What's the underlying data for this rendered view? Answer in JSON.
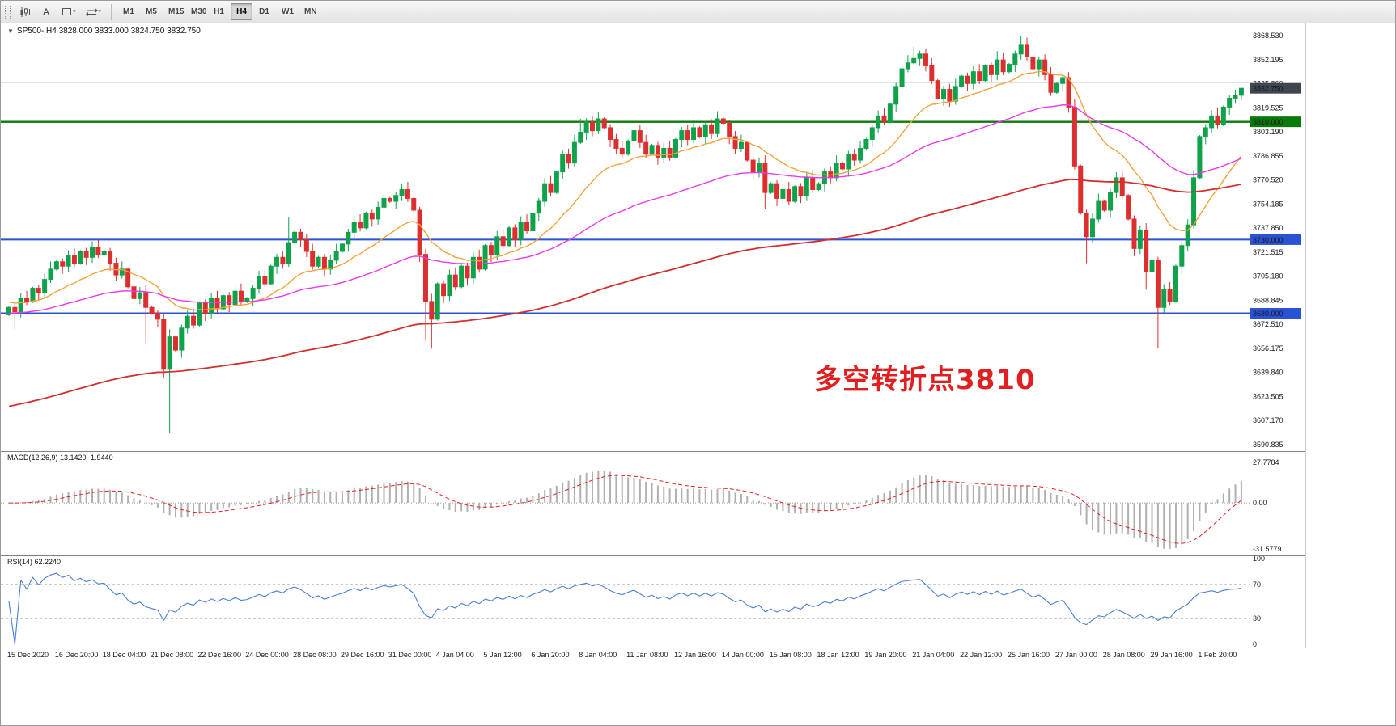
{
  "toolbar": {
    "icon_a": "A",
    "caret": "▾",
    "timeframes": [
      {
        "label": "M1",
        "active": false
      },
      {
        "label": "M5",
        "active": false
      },
      {
        "label": "M15",
        "active": false
      },
      {
        "label": "M30",
        "active": false
      },
      {
        "label": "H1",
        "active": false
      },
      {
        "label": "H4",
        "active": true
      },
      {
        "label": "D1",
        "active": false
      },
      {
        "label": "W1",
        "active": false
      },
      {
        "label": "MN",
        "active": false
      }
    ]
  },
  "chart_data": {
    "type": "candlestick",
    "symbol": "SP500-",
    "timeframe": "H4",
    "shift_marker": "▼",
    "title": "SP500-,H4 3828.000 3833.000 3824.750 3832.750",
    "last_ohlc": {
      "open": 3828.0,
      "high": 3833.0,
      "low": 3824.75,
      "close": 3832.75
    },
    "annotation": {
      "text": "多空转折点3810",
      "color": "#e02020"
    },
    "colors": {
      "up": "#0fa24b",
      "down": "#dd2f2f",
      "background": "#ffffff"
    },
    "price_axis": {
      "top": 3868.53,
      "bottom": 3590.835,
      "labels": [
        "3868.530",
        "3852.195",
        "3835.860",
        "3819.525",
        "3803.190",
        "3786.855",
        "3770.520",
        "3754.185",
        "3737.850",
        "3721.515",
        "3705.180",
        "3688.845",
        "3672.510",
        "3656.175",
        "3639.840",
        "3623.505",
        "3607.170",
        "3590.835"
      ]
    },
    "current_price": {
      "value": 3832.75,
      "label": "3832.750",
      "badge_bg": "#3f4650"
    },
    "horizontal_lines": [
      {
        "price": 3836.85,
        "color": "#7a8fa6",
        "width": 1
      },
      {
        "price": 3810.0,
        "color": "#0a7a0a",
        "width": 2.4,
        "badge": "3810.000"
      },
      {
        "price": 3730.0,
        "color": "#2a52d4",
        "width": 2,
        "badge": "3730.000"
      },
      {
        "price": 3680.0,
        "color": "#2a52d4",
        "width": 2,
        "badge": "3680.000"
      }
    ],
    "moving_averages": [
      {
        "name": "fast",
        "period": 18,
        "seed": 3688,
        "color": "#f2a33c",
        "width": 1.4
      },
      {
        "name": "mid",
        "period": 55,
        "seed": 3680,
        "color": "#e93ae9",
        "width": 1.4
      },
      {
        "name": "slow",
        "period": 160,
        "seed": 3616,
        "color": "#d32f2f",
        "width": 1.8
      }
    ],
    "candles": {
      "open_first": 3679,
      "closes": [
        3684,
        3681,
        3690,
        3688,
        3697,
        3694,
        3703,
        3710,
        3715,
        3712,
        3719,
        3714,
        3722,
        3718,
        3725,
        3720,
        3722,
        3714,
        3706,
        3710,
        3698,
        3690,
        3694,
        3684,
        3680,
        3676,
        3642,
        3664,
        3655,
        3670,
        3678,
        3672,
        3687,
        3680,
        3690,
        3683,
        3692,
        3686,
        3695,
        3688,
        3690,
        3697,
        3705,
        3700,
        3712,
        3718,
        3714,
        3728,
        3735,
        3730,
        3722,
        3712,
        3718,
        3710,
        3716,
        3722,
        3727,
        3735,
        3742,
        3738,
        3748,
        3744,
        3752,
        3758,
        3756,
        3760,
        3764,
        3758,
        3750,
        3720,
        3688,
        3676,
        3700,
        3692,
        3706,
        3698,
        3712,
        3704,
        3718,
        3710,
        3726,
        3720,
        3732,
        3726,
        3738,
        3730,
        3742,
        3736,
        3748,
        3756,
        3768,
        3762,
        3776,
        3788,
        3782,
        3796,
        3803,
        3810,
        3804,
        3812,
        3806,
        3798,
        3792,
        3788,
        3797,
        3804,
        3796,
        3788,
        3794,
        3786,
        3792,
        3786,
        3798,
        3804,
        3798,
        3806,
        3800,
        3808,
        3802,
        3812,
        3809,
        3800,
        3792,
        3796,
        3784,
        3776,
        3782,
        3762,
        3768,
        3758,
        3764,
        3756,
        3766,
        3760,
        3772,
        3764,
        3768,
        3776,
        3772,
        3782,
        3778,
        3788,
        3784,
        3792,
        3798,
        3806,
        3814,
        3810,
        3822,
        3834,
        3846,
        3850,
        3853,
        3856,
        3848,
        3838,
        3826,
        3832,
        3824,
        3834,
        3841,
        3836,
        3844,
        3838,
        3848,
        3842,
        3852,
        3844,
        3849,
        3856,
        3862,
        3854,
        3846,
        3852,
        3842,
        3830,
        3836,
        3840,
        3820,
        3780,
        3748,
        3732,
        3744,
        3756,
        3750,
        3762,
        3772,
        3760,
        3744,
        3724,
        3736,
        3708,
        3716,
        3684,
        3696,
        3688,
        3712,
        3726,
        3740,
        3772,
        3800,
        3806,
        3814,
        3808,
        3820,
        3826,
        3828,
        3832.75
      ],
      "overrides": [
        {
          "i": 1,
          "low": 3669
        },
        {
          "i": 23,
          "low": 3660
        },
        {
          "i": 26,
          "low": 3636
        },
        {
          "i": 27,
          "low": 3599
        },
        {
          "i": 47,
          "high": 3745
        },
        {
          "i": 63,
          "high": 3769
        },
        {
          "i": 70,
          "low": 3662
        },
        {
          "i": 71,
          "low": 3656
        },
        {
          "i": 96,
          "high": 3812
        },
        {
          "i": 99,
          "high": 3817
        },
        {
          "i": 127,
          "low": 3751
        },
        {
          "i": 152,
          "high": 3861
        },
        {
          "i": 166,
          "high": 3858
        },
        {
          "i": 170,
          "high": 3868
        },
        {
          "i": 181,
          "low": 3714
        },
        {
          "i": 191,
          "low": 3696
        },
        {
          "i": 193,
          "low": 3656
        },
        {
          "i": 207,
          "high": 3833,
          "low": 3824.75
        }
      ]
    },
    "macd": {
      "label": "MACD(12,26,9) 13.1420 -1.9440",
      "params": [
        12,
        26,
        9
      ],
      "current_values": [
        13.142,
        -1.944
      ],
      "axis_labels": [
        "27.7784",
        "0.00",
        "-31.5779"
      ],
      "range": {
        "top": 27.7784,
        "bottom": -31.5779
      },
      "histogram_color": "#b0b0b0",
      "signal_color": "#e02020"
    },
    "rsi": {
      "label": "RSI(14) 62.2240",
      "period": 14,
      "current_value": 62.224,
      "axis_labels": [
        "100",
        "70",
        "30",
        "0"
      ],
      "levels": [
        70,
        30
      ],
      "line_color": "#4a7fd4"
    },
    "time_axis": {
      "labels": [
        "15 Dec 2020",
        "16 Dec 20:00",
        "18 Dec 04:00",
        "21 Dec 08:00",
        "22 Dec 16:00",
        "24 Dec 00:00",
        "28 Dec 08:00",
        "29 Dec 16:00",
        "31 Dec 00:00",
        "4 Jan 04:00",
        "5 Jan 12:00",
        "6 Jan 20:00",
        "8 Jan 04:00",
        "11 Jan 08:00",
        "12 Jan 16:00",
        "14 Jan 00:00",
        "15 Jan 08:00",
        "18 Jan 12:00",
        "19 Jan 20:00",
        "21 Jan 04:00",
        "22 Jan 12:00",
        "25 Jan 16:00",
        "27 Jan 00:00",
        "28 Jan 08:00",
        "29 Jan 16:00",
        "1 Feb 20:00"
      ]
    }
  }
}
